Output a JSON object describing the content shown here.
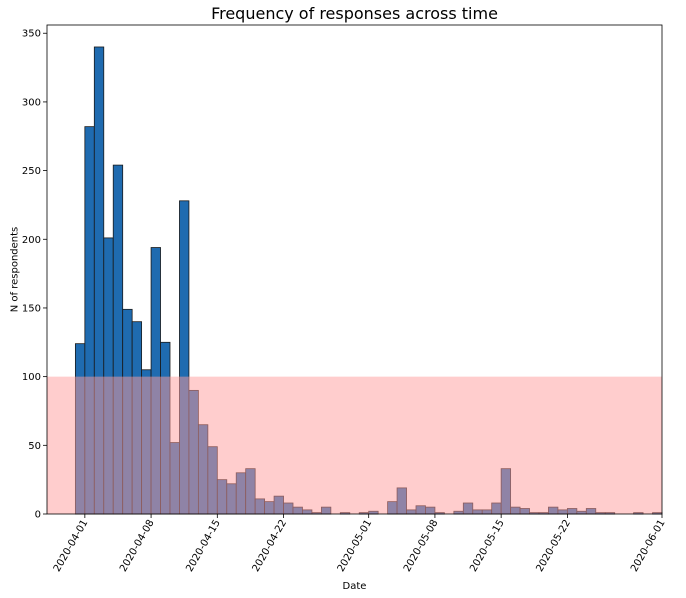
{
  "chart_data": {
    "type": "bar",
    "title": "Frequency of responses across time",
    "xlabel": "Date",
    "ylabel": "N of respondents",
    "ylim": [
      0,
      356
    ],
    "y_ticks": [
      0,
      50,
      100,
      150,
      200,
      250,
      300,
      350
    ],
    "x_range": [
      "2020-03-28",
      "2020-06-01"
    ],
    "x_ticks": [
      "2020-04-01",
      "2020-04-08",
      "2020-04-15",
      "2020-04-22",
      "2020-05-01",
      "2020-05-08",
      "2020-05-15",
      "2020-05-22",
      "2020-06-01"
    ],
    "x_tick_rotation": 60,
    "bin_width_days": 1,
    "bin_starts": [
      "2020-03-31",
      "2020-04-01",
      "2020-04-02",
      "2020-04-03",
      "2020-04-04",
      "2020-04-05",
      "2020-04-06",
      "2020-04-07",
      "2020-04-08",
      "2020-04-09",
      "2020-04-10",
      "2020-04-11",
      "2020-04-12",
      "2020-04-13",
      "2020-04-14",
      "2020-04-15",
      "2020-04-16",
      "2020-04-17",
      "2020-04-18",
      "2020-04-19",
      "2020-04-20",
      "2020-04-21",
      "2020-04-22",
      "2020-04-23",
      "2020-04-24",
      "2020-04-25",
      "2020-04-26",
      "2020-04-27",
      "2020-04-28",
      "2020-04-29",
      "2020-04-30",
      "2020-05-01",
      "2020-05-02",
      "2020-05-03",
      "2020-05-04",
      "2020-05-05",
      "2020-05-06",
      "2020-05-07",
      "2020-05-08",
      "2020-05-09",
      "2020-05-10",
      "2020-05-11",
      "2020-05-12",
      "2020-05-13",
      "2020-05-14",
      "2020-05-15",
      "2020-05-16",
      "2020-05-17",
      "2020-05-18",
      "2020-05-19",
      "2020-05-20",
      "2020-05-21",
      "2020-05-22",
      "2020-05-23",
      "2020-05-24",
      "2020-05-25",
      "2020-05-26",
      "2020-05-27",
      "2020-05-28",
      "2020-05-29",
      "2020-05-30",
      "2020-05-31",
      "2020-06-01"
    ],
    "values": [
      124,
      282,
      340,
      201,
      254,
      149,
      140,
      105,
      194,
      125,
      52,
      228,
      90,
      65,
      49,
      25,
      22,
      30,
      33,
      11,
      9,
      13,
      8,
      5,
      3,
      1,
      5,
      0,
      1,
      0,
      1,
      2,
      0,
      9,
      19,
      3,
      6,
      5,
      1,
      0,
      2,
      8,
      3,
      3,
      8,
      33,
      5,
      4,
      1,
      1,
      5,
      3,
      4,
      2,
      4,
      1,
      1,
      0,
      0,
      1,
      0,
      1,
      0
    ],
    "threshold_band": {
      "from": 0,
      "to": 100,
      "color": "#ff9c9c",
      "opacity": 0.5
    },
    "bar_color": "#1f6bb0",
    "bar_edge_color": "#1a1a1a",
    "grid": false,
    "legend": "none"
  }
}
